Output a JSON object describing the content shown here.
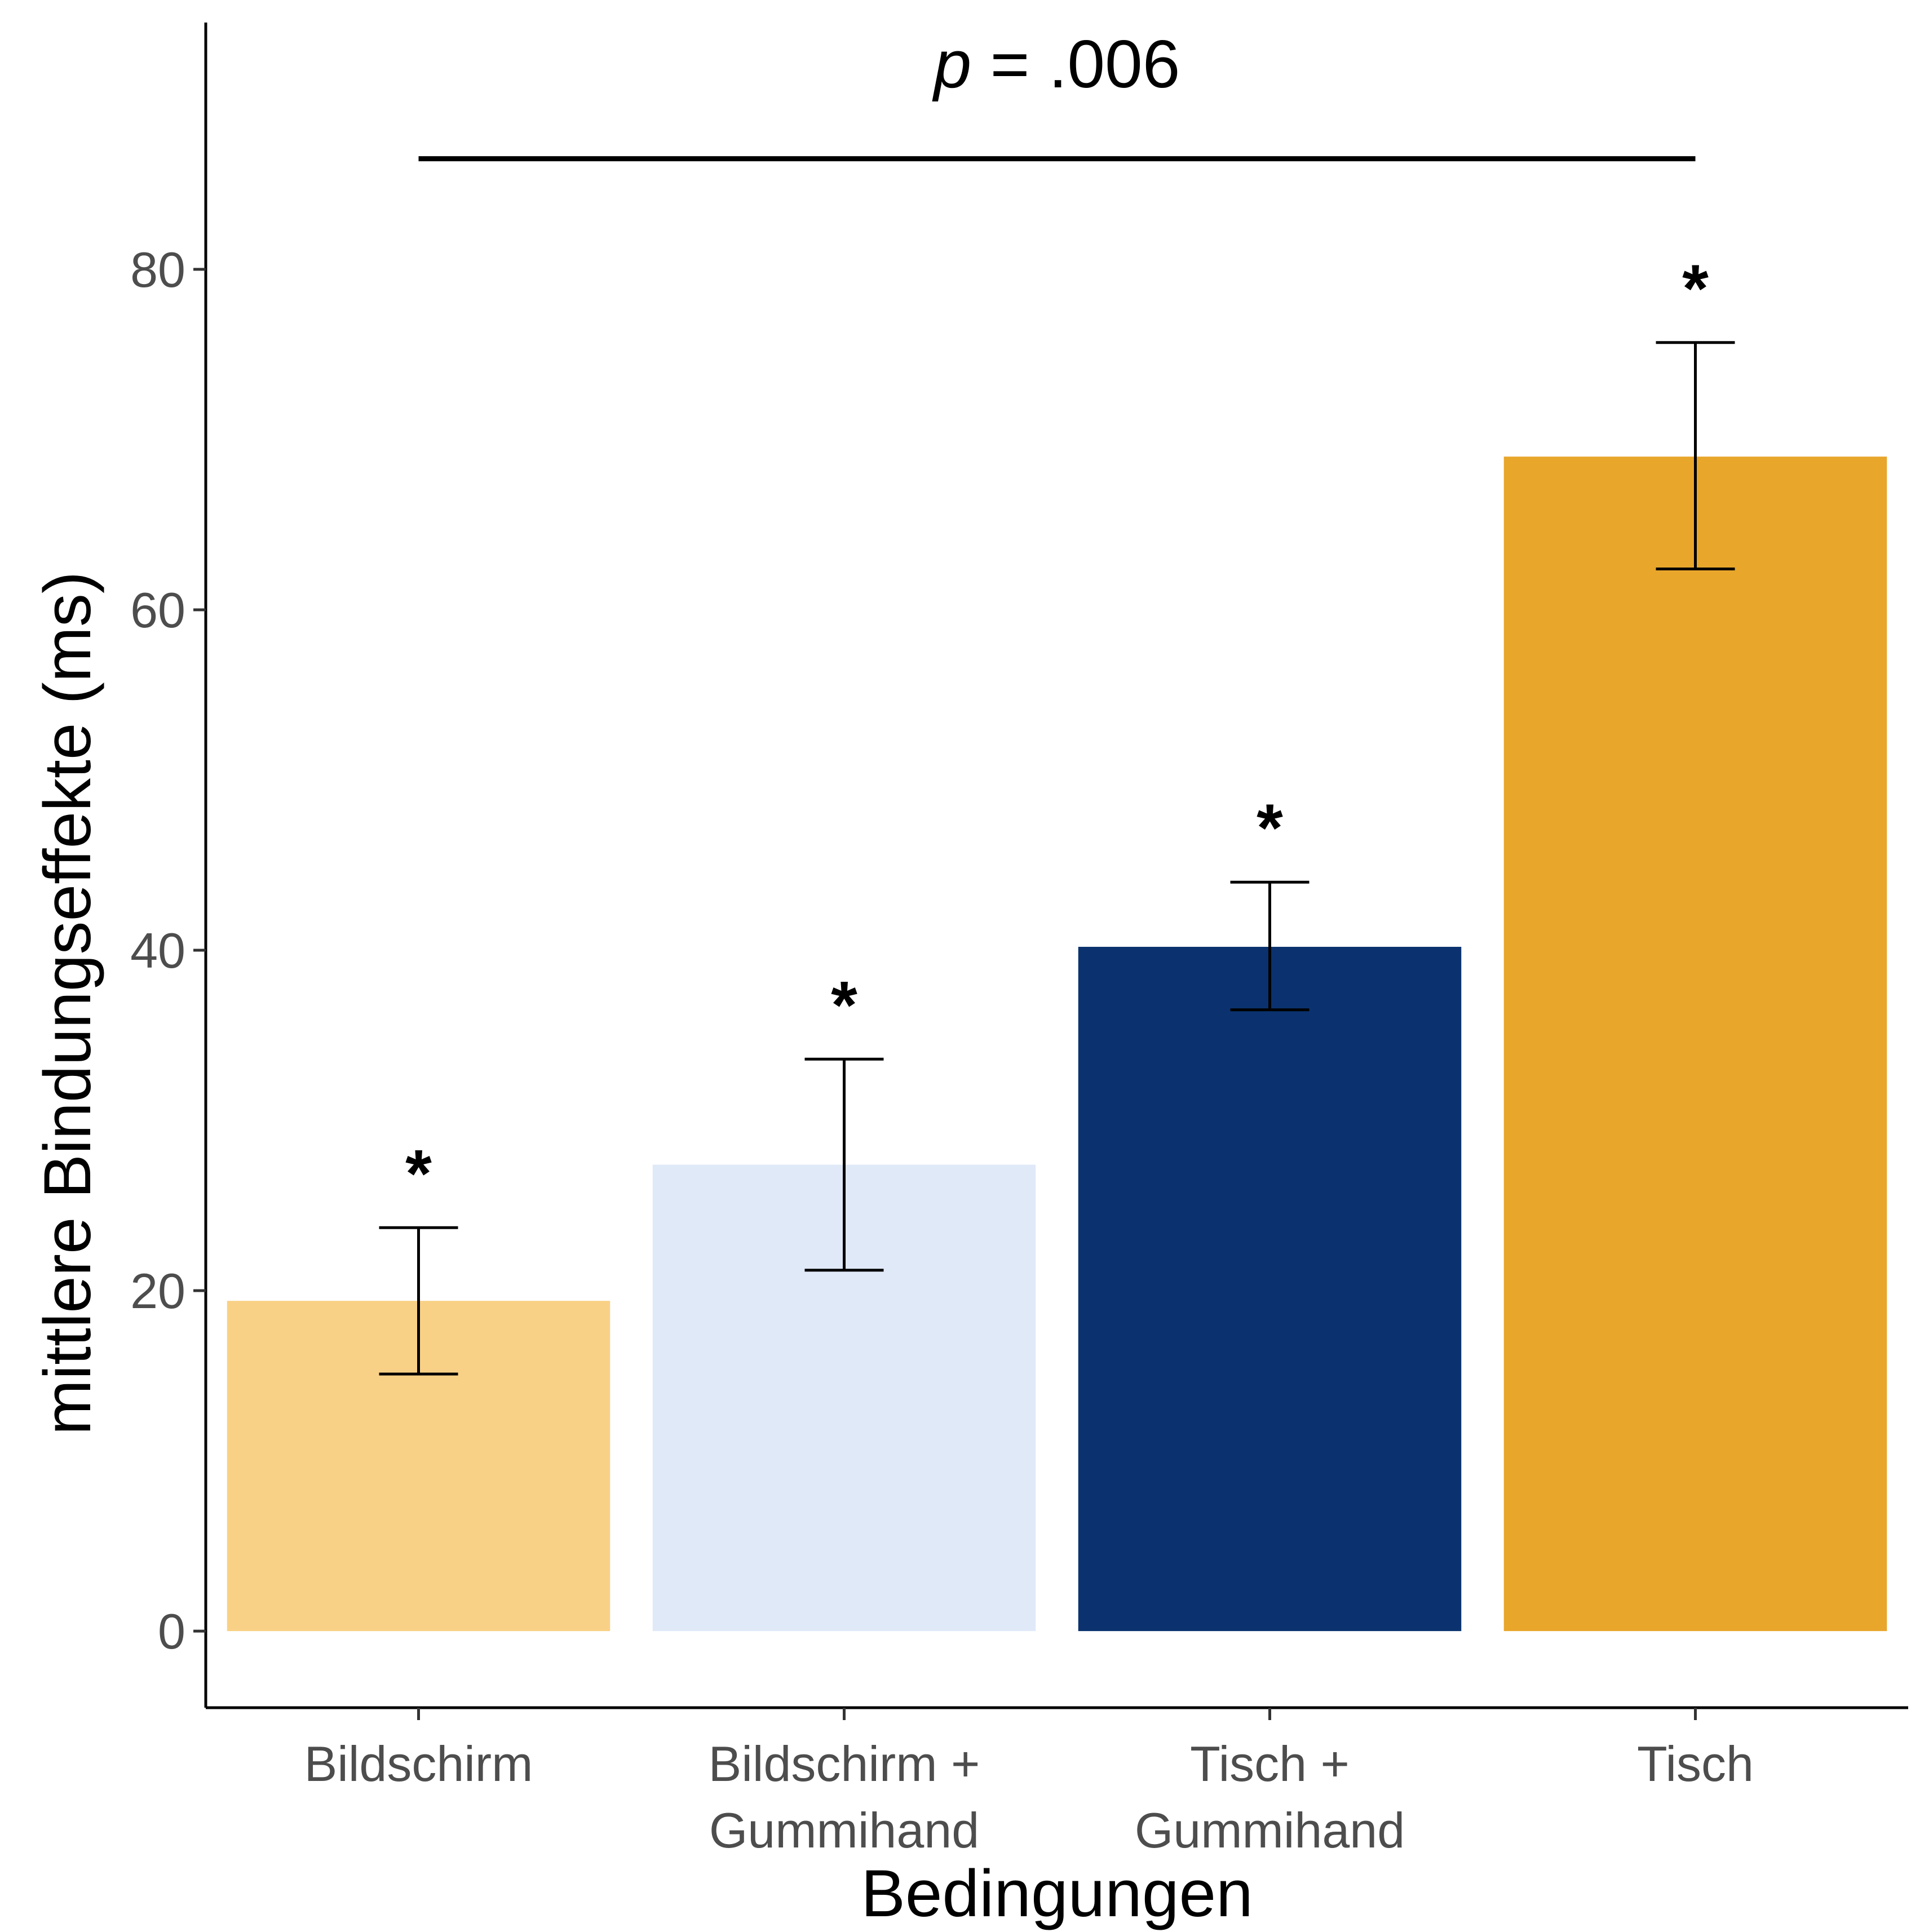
{
  "chart_data": {
    "type": "bar",
    "title": "",
    "xlabel": "Bedingungen",
    "ylabel": "mittlere Bindungseffekte (ms)",
    "ylim": [
      -4.5,
      94.5
    ],
    "yticks": [
      0,
      20,
      40,
      60,
      80
    ],
    "categories": [
      [
        "Bildschirm"
      ],
      [
        "Bildschirm +",
        "Gummihand"
      ],
      [
        "Tisch +",
        "Gummihand"
      ],
      [
        "Tisch"
      ]
    ],
    "values": [
      19.4,
      27.4,
      40.2,
      69.0
    ],
    "error_low": [
      15.1,
      21.2,
      36.5,
      62.4
    ],
    "error_high": [
      23.7,
      33.6,
      44.0,
      75.7
    ],
    "colors": [
      "#F9D186",
      "#DFE9F8",
      "#0B326E",
      "#E8A62B"
    ],
    "significance_marks": [
      "*",
      "*",
      "*",
      "*"
    ],
    "comparison": {
      "from_category": 0,
      "to_category": 3,
      "p_italic": "p",
      "p_rest": " = .006",
      "y": 86.5
    },
    "grid": false,
    "legend": "none"
  }
}
